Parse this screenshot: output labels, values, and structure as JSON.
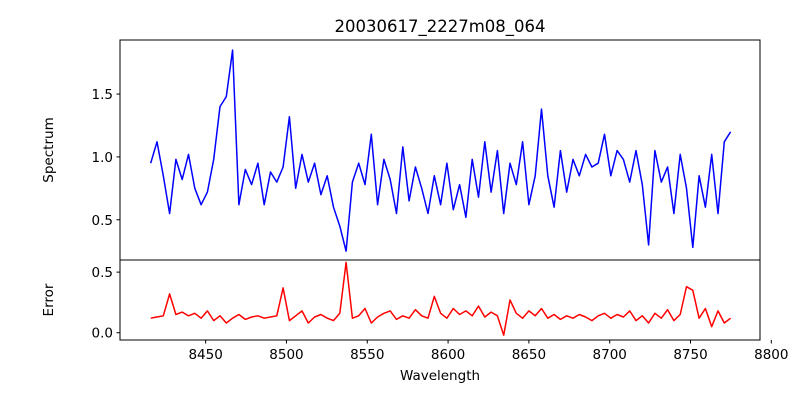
{
  "chart_data": [
    {
      "type": "line",
      "title": "20030617_2227m08_064",
      "xlabel": "",
      "ylabel": "Spectrum",
      "xlim": [
        8397,
        8793
      ],
      "ylim": [
        0.18,
        1.93
      ],
      "yticks": [
        0.5,
        1.0,
        1.5
      ],
      "ytick_labels": [
        "0.5",
        "1.0",
        "1.5"
      ],
      "grid": false,
      "color": "#0000ff",
      "x_start": 8416,
      "x_step": 3.9,
      "values": [
        0.95,
        1.12,
        0.85,
        0.55,
        0.98,
        0.82,
        1.02,
        0.75,
        0.62,
        0.72,
        0.98,
        1.4,
        1.48,
        1.85,
        0.62,
        0.9,
        0.78,
        0.95,
        0.62,
        0.88,
        0.8,
        0.92,
        1.32,
        0.75,
        1.02,
        0.8,
        0.95,
        0.7,
        0.85,
        0.6,
        0.45,
        0.25,
        0.8,
        0.95,
        0.78,
        1.18,
        0.62,
        0.98,
        0.82,
        0.55,
        1.08,
        0.65,
        0.92,
        0.75,
        0.55,
        0.85,
        0.62,
        0.95,
        0.58,
        0.78,
        0.52,
        0.98,
        0.68,
        1.12,
        0.72,
        1.05,
        0.55,
        0.95,
        0.78,
        1.12,
        0.62,
        0.85,
        1.38,
        0.85,
        0.6,
        1.05,
        0.72,
        0.98,
        0.85,
        1.02,
        0.92,
        0.95,
        1.18,
        0.85,
        1.05,
        0.98,
        0.8,
        1.05,
        0.78,
        0.3,
        1.05,
        0.8,
        0.92,
        0.55,
        1.02,
        0.75,
        0.28,
        0.85,
        0.6,
        1.02,
        0.55,
        1.12,
        1.2
      ]
    },
    {
      "type": "line",
      "xlabel": "Wavelength",
      "ylabel": "Error",
      "xlim": [
        8397,
        8793
      ],
      "ylim": [
        -0.06,
        0.6
      ],
      "yticks": [
        0.0,
        0.5
      ],
      "ytick_labels": [
        "0.0",
        "0.5"
      ],
      "xticks": [
        8450,
        8500,
        8550,
        8600,
        8650,
        8700,
        8750,
        8800
      ],
      "xtick_labels": [
        "8450",
        "8500",
        "8550",
        "8600",
        "8650",
        "8700",
        "8750",
        "8800"
      ],
      "grid": false,
      "color": "#ff0000",
      "x_start": 8416,
      "x_step": 3.9,
      "values": [
        0.12,
        0.13,
        0.14,
        0.32,
        0.15,
        0.17,
        0.14,
        0.16,
        0.12,
        0.18,
        0.1,
        0.14,
        0.08,
        0.12,
        0.15,
        0.11,
        0.13,
        0.14,
        0.12,
        0.13,
        0.14,
        0.37,
        0.1,
        0.14,
        0.18,
        0.08,
        0.13,
        0.15,
        0.12,
        0.1,
        0.16,
        0.58,
        0.12,
        0.14,
        0.2,
        0.08,
        0.13,
        0.16,
        0.18,
        0.11,
        0.14,
        0.12,
        0.19,
        0.14,
        0.12,
        0.3,
        0.16,
        0.12,
        0.2,
        0.15,
        0.18,
        0.14,
        0.22,
        0.13,
        0.17,
        0.14,
        -0.02,
        0.27,
        0.16,
        0.12,
        0.18,
        0.14,
        0.2,
        0.12,
        0.15,
        0.11,
        0.14,
        0.12,
        0.15,
        0.13,
        0.1,
        0.14,
        0.16,
        0.12,
        0.15,
        0.13,
        0.18,
        0.1,
        0.14,
        0.08,
        0.16,
        0.12,
        0.19,
        0.1,
        0.15,
        0.38,
        0.35,
        0.12,
        0.2,
        0.05,
        0.18,
        0.08,
        0.12
      ]
    }
  ]
}
